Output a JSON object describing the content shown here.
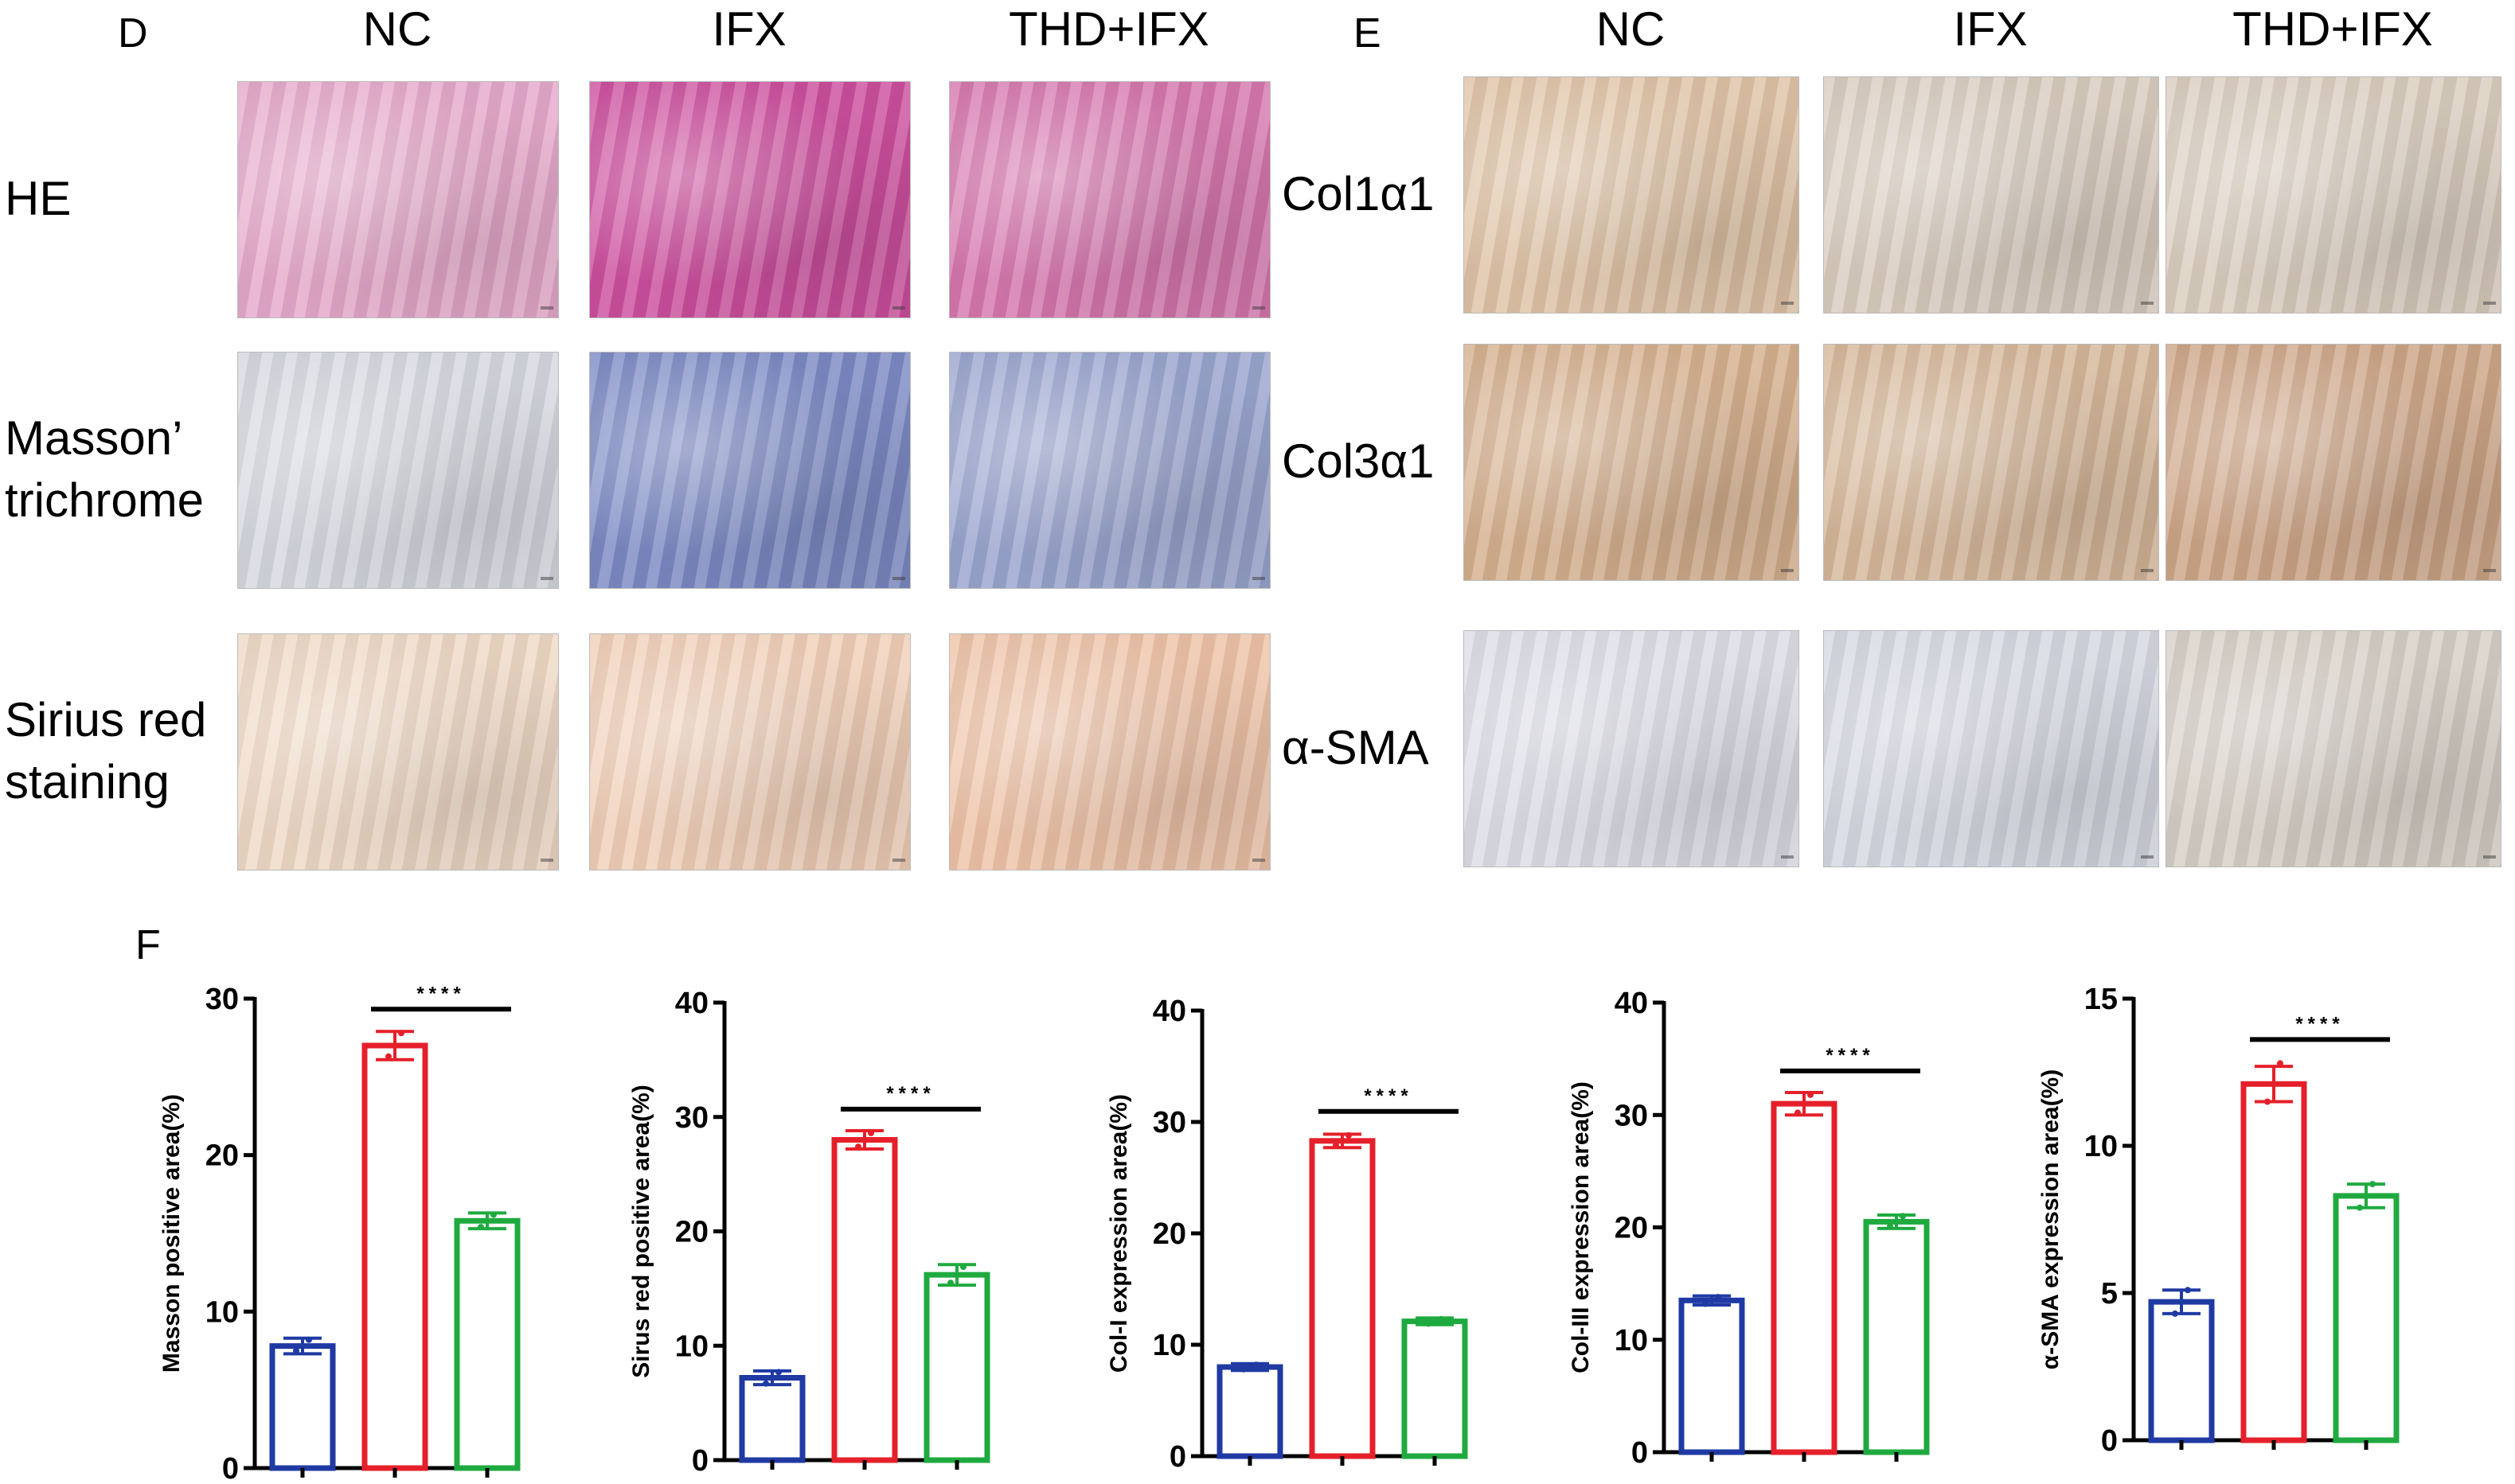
{
  "panels": {
    "D": {
      "letter": "D",
      "columns": [
        "NC",
        "IFX",
        "THD+IFX"
      ],
      "rows": [
        {
          "label_lines": [
            "HE"
          ],
          "colors": [
            "#e6a9cb",
            "#cc4f9e",
            "#d677ae"
          ]
        },
        {
          "label_lines": [
            "Masson’",
            "trichrome"
          ],
          "colors": [
            "#d6d8df",
            "#7c8ac4",
            "#9aa5cf"
          ]
        },
        {
          "label_lines": [
            "Sirius red",
            "staining"
          ],
          "colors": [
            "#efd9c6",
            "#f0cfb8",
            "#eec3a8"
          ]
        }
      ]
    },
    "E": {
      "letter": "E",
      "columns": [
        "NC",
        "IFX",
        "THD+IFX"
      ],
      "rows": [
        {
          "label_lines": [
            "Col1α1"
          ],
          "colors": [
            "#dfc3a6",
            "#d9ccbf",
            "#dacdbf"
          ]
        },
        {
          "label_lines": [
            "Col3α1"
          ],
          "colors": [
            "#d5b08e",
            "#d6b79a",
            "#cda587"
          ]
        },
        {
          "label_lines": [
            "α-SMA"
          ],
          "colors": [
            "#dcdde6",
            "#d6d8e2",
            "#d6cfc6"
          ]
        }
      ]
    },
    "F": {
      "letter": "F"
    }
  },
  "colors": {
    "NC": "#1f3aa3",
    "IFX": "#e5202a",
    "THD+IFX": "#1faa3f"
  },
  "chart_data": [
    {
      "type": "bar",
      "ylabel": "Masson positive area(%)",
      "ylim": [
        0,
        30
      ],
      "yticks": [
        "0",
        "10",
        "20",
        "30"
      ],
      "values": [
        7.8,
        27.0,
        15.8
      ],
      "errors": [
        0.5,
        0.9,
        0.5
      ],
      "points": [
        [
          7.5,
          8.2
        ],
        [
          26.3,
          27.8
        ],
        [
          15.4,
          16.2
        ]
      ],
      "significance": {
        "between": [
          1,
          2
        ],
        "label": "****"
      }
    },
    {
      "type": "bar",
      "ylabel": "Sirus red positive area(%)",
      "ylim": [
        0,
        40
      ],
      "yticks": [
        "0",
        "10",
        "20",
        "30",
        "40"
      ],
      "values": [
        7.2,
        28.0,
        16.2
      ],
      "errors": [
        0.6,
        0.8,
        0.9
      ],
      "points": [
        [
          6.7,
          7.7
        ],
        [
          27.4,
          28.6
        ],
        [
          15.5,
          16.9
        ]
      ],
      "significance": {
        "between": [
          1,
          2
        ],
        "label": "****"
      }
    },
    {
      "type": "bar",
      "ylabel": "Col-I expression area(%)",
      "ylim": [
        0,
        40
      ],
      "yticks": [
        "0",
        "10",
        "20",
        "30",
        "40"
      ],
      "values": [
        8.0,
        28.3,
        12.1
      ],
      "errors": [
        0.3,
        0.6,
        0.3
      ],
      "points": [
        [
          7.8,
          8.2
        ],
        [
          27.9,
          28.8
        ],
        [
          11.9,
          12.3
        ]
      ],
      "significance": {
        "between": [
          1,
          2
        ],
        "label": "****"
      }
    },
    {
      "type": "bar",
      "ylabel": "Col-III expression area(%)",
      "ylim": [
        0,
        40
      ],
      "yticks": [
        "0",
        "10",
        "20",
        "30",
        "40"
      ],
      "values": [
        13.5,
        31.0,
        20.5
      ],
      "errors": [
        0.4,
        1.0,
        0.6
      ],
      "points": [
        [
          13.2,
          13.8
        ],
        [
          30.2,
          31.8
        ],
        [
          20.1,
          21.0
        ]
      ],
      "significance": {
        "between": [
          1,
          2
        ],
        "label": "****"
      }
    },
    {
      "type": "bar",
      "ylabel": "α-SMA expression area(%)",
      "ylim": [
        0,
        15
      ],
      "yticks": [
        "0",
        "5",
        "10",
        "15"
      ],
      "values": [
        4.7,
        12.1,
        8.3
      ],
      "errors": [
        0.4,
        0.6,
        0.4
      ],
      "points": [
        [
          4.3,
          5.1
        ],
        [
          11.5,
          12.8
        ],
        [
          7.9,
          8.7
        ]
      ],
      "significance": {
        "between": [
          1,
          2
        ],
        "label": "****"
      }
    }
  ]
}
